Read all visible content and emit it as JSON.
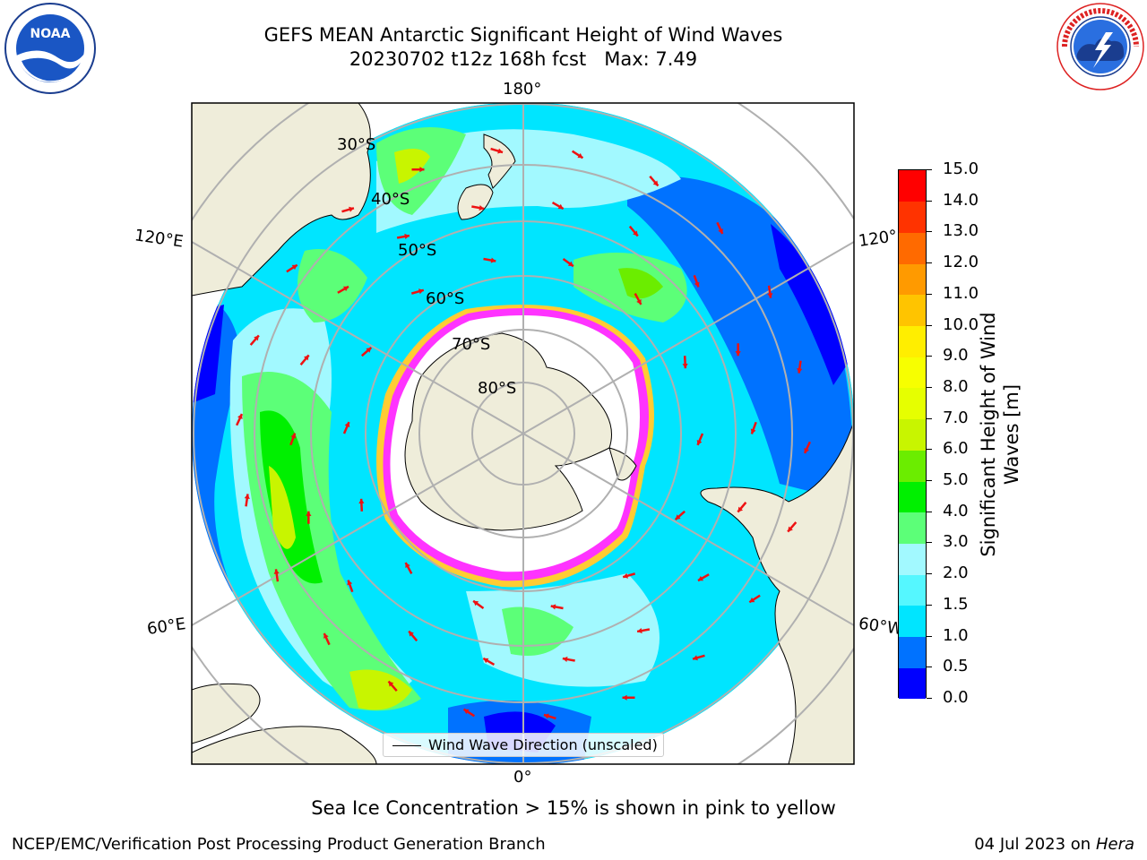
{
  "header": {
    "title_line1": "GEFS MEAN Antarctic Significant Height of Wind Waves",
    "title_line2": "20230702 t12z 168h fcst   Max: 7.49"
  },
  "map": {
    "longitude_labels": {
      "top": "180°",
      "bottom": "0°",
      "left_upper": "120°E",
      "left_lower": "60°E",
      "right_upper": "120°",
      "right_lower": "60°W"
    },
    "latitude_labels": [
      "30°S",
      "40°S",
      "50°S",
      "60°S",
      "70°S",
      "80°S"
    ],
    "legend": "Wind Wave Direction (unscaled)",
    "colors": {
      "land": "#efedda",
      "ice_edge_inner": "#ff33ff",
      "ice_edge_mid": "#ff66cc",
      "ice_edge_outer": "#ffcc33",
      "arrow": "#ee1111",
      "grid": "#b0b0b0"
    }
  },
  "colorbar": {
    "label": "Significant Height of Wind Waves [m]",
    "ticks": [
      "0.0",
      "0.5",
      "1.0",
      "1.5",
      "2.0",
      "3.0",
      "4.0",
      "5.0",
      "6.0",
      "7.0",
      "8.0",
      "9.0",
      "10.0",
      "11.0",
      "12.0",
      "13.0",
      "14.0",
      "15.0"
    ],
    "colors": [
      "#0000ff",
      "#0072ff",
      "#00e5ff",
      "#55f7ff",
      "#a2f9ff",
      "#5cff78",
      "#00f000",
      "#6bed00",
      "#c8f500",
      "#e6ff00",
      "#f7ff00",
      "#ffee00",
      "#ffc400",
      "#ff9a00",
      "#ff6a00",
      "#ff3300",
      "#ff0000"
    ]
  },
  "note": "Sea Ice Concentration > 15% is shown in pink to yellow",
  "footer": {
    "left": "NCEP/EMC/Verification Post Processing Product Generation Branch",
    "date": "04 Jul 2023 on ",
    "machine": "Hera"
  }
}
